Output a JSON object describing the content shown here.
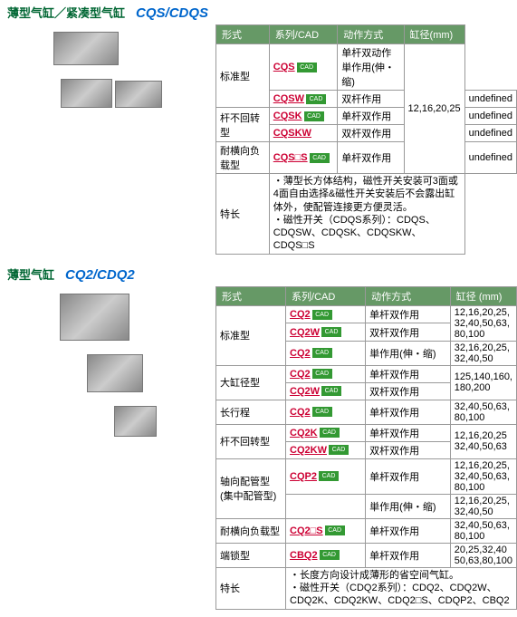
{
  "section1": {
    "heading_jp": "薄型气缸／紧凑型气缸",
    "heading_model": "CQS/CDQS",
    "headers": {
      "type": "形式",
      "series": "系列/CAD",
      "action": "动作方式",
      "bore": "缸径(mm)"
    },
    "rows": [
      {
        "type": "标准型",
        "type_rowspan": 2,
        "series": "CQS",
        "cad": true,
        "action": "单杆双动作\n単作用(伸・缩)",
        "bore": "12,16,20,25",
        "bore_rowspan": 5
      },
      {
        "series": "CQSW",
        "cad": true,
        "action": "双杆作用"
      },
      {
        "type": "杆不回转型",
        "type_rowspan": 2,
        "series": "CQSK",
        "cad": true,
        "action": "单杆双作用"
      },
      {
        "series": "CQSKW",
        "cad": false,
        "action": "双杆双作用"
      },
      {
        "type": "耐横向负载型",
        "series": "CQS□S",
        "cad": true,
        "action": "单杆双作用"
      }
    ],
    "feature_label": "特长",
    "feature_text": "・薄型长方体结构，磁性开关安装可3面或4面自由选择&磁性开关安装后不会露出缸体外，使配管连接更方便灵活。\n・磁性开关（CDQS系列）：CDQS、CDQSW、CDQSK、CDQSKW、CDQS□S"
  },
  "section2": {
    "heading_jp": "薄型气缸",
    "heading_model": "CQ2/CDQ2",
    "headers": {
      "type": "形式",
      "series": "系列/CAD",
      "action": "动作方式",
      "bore": "缸径 (mm)"
    },
    "rows": [
      {
        "type": "标准型",
        "type_rowspan": 3,
        "series": "CQ2",
        "cad": true,
        "action": "单杆双作用",
        "bore": "12,16,20,25,\n32,40,50,63,\n80,100"
      },
      {
        "series": "CQ2W",
        "cad": true,
        "action": "双杆双作用",
        "bore": "",
        "bore_merge": true
      },
      {
        "series": "CQ2",
        "cad": true,
        "action": "単作用(伸・缩)",
        "bore": "32,16,20,25,\n32,40,50"
      },
      {
        "type": "大缸径型",
        "type_rowspan": 2,
        "series": "CQ2",
        "cad": true,
        "action": "单杆双作用",
        "bore": "125,140,160,\n180,200"
      },
      {
        "series": "CQ2W",
        "cad": true,
        "action": "双杆双作用",
        "bore": "",
        "bore_merge": true
      },
      {
        "type": "长行程",
        "series": "CQ2",
        "cad": true,
        "action": "单杆双作用",
        "bore": "32,40,50,63,\n80,100"
      },
      {
        "type": "杆不回转型",
        "type_rowspan": 2,
        "series": "CQ2K",
        "cad": true,
        "action": "单杆双作用",
        "bore": "12,16,20,25\n32,40,50,63"
      },
      {
        "series": "CQ2KW",
        "cad": true,
        "action": "双杆双作用",
        "bore": "",
        "bore_merge": true
      },
      {
        "type": "轴向配管型\n(集中配管型)",
        "type_rowspan": 2,
        "series": "CQP2",
        "cad": true,
        "action": "单杆双作用",
        "bore": "12,16,20,25,\n32,40,50,63,\n80,100"
      },
      {
        "series": "",
        "cad": false,
        "action": "単作用(伸・缩)",
        "bore": "12,16,20,25,\n32,40,50"
      },
      {
        "type": "耐横向负载型",
        "series": "CQ2□S",
        "cad": true,
        "action": "单杆双作用",
        "bore": "32,40,50,63,\n80,100"
      },
      {
        "type": "端锁型",
        "series": "CBQ2",
        "cad": true,
        "action": "单杆双作用",
        "bore": "20,25,32,40\n50,63,80,100"
      }
    ],
    "feature_label": "特长",
    "feature_text": "・长度方向设计成薄形的省空间气缸。\n・磁性开关（CDQ2系列）：CDQ2、CDQ2W、CDQ2K、CDQ2KW、CDQ2□S、CDQP2、CBQ2"
  }
}
